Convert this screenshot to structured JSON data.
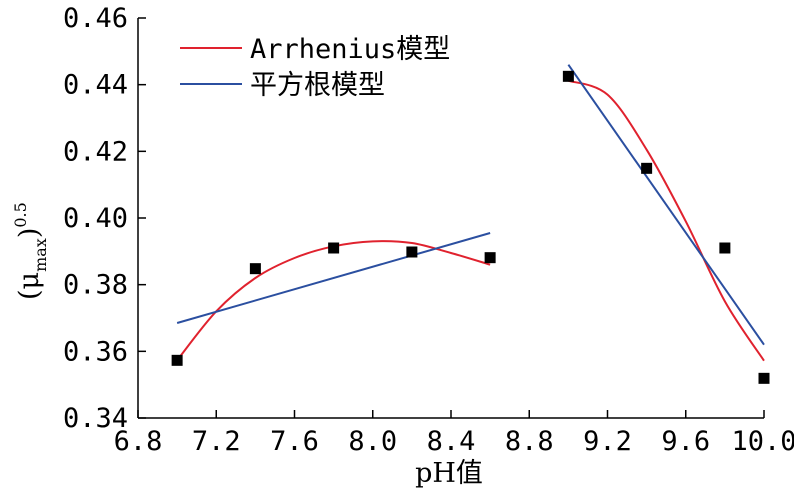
{
  "chart_data": {
    "type": "scatter",
    "xlabel": "pH值",
    "ylabel": {
      "base": "(μ",
      "sub": "max",
      "close": ")",
      "sup": "0.5"
    },
    "xlim": [
      6.8,
      10.0
    ],
    "ylim": [
      0.34,
      0.46
    ],
    "xticks": [
      6.8,
      7.2,
      7.6,
      8.0,
      8.4,
      8.8,
      9.2,
      9.6,
      10.0
    ],
    "xtick_labels": [
      "6.8",
      "7.2",
      "7.6",
      "8.0",
      "8.4",
      "8.8",
      "9.2",
      "9.6",
      "10.0"
    ],
    "yticks": [
      0.34,
      0.36,
      0.38,
      0.4,
      0.42,
      0.44,
      0.46
    ],
    "ytick_labels": [
      "0.34",
      "0.36",
      "0.38",
      "0.40",
      "0.42",
      "0.44",
      "0.46"
    ],
    "grid": false,
    "legend_position": "top-left",
    "points": [
      {
        "x": 7.0,
        "y": 0.3573
      },
      {
        "x": 7.4,
        "y": 0.3848
      },
      {
        "x": 7.8,
        "y": 0.391
      },
      {
        "x": 8.2,
        "y": 0.3898
      },
      {
        "x": 8.6,
        "y": 0.3881
      },
      {
        "x": 9.0,
        "y": 0.4425
      },
      {
        "x": 9.4,
        "y": 0.4149
      },
      {
        "x": 9.8,
        "y": 0.391
      },
      {
        "x": 10.0,
        "y": 0.3519
      }
    ],
    "series": [
      {
        "name": "Arrhenius模型",
        "color": "#e0222e",
        "segments": [
          [
            [
              7.0,
              0.3573
            ],
            [
              7.2,
              0.372
            ],
            [
              7.4,
              0.382
            ],
            [
              7.6,
              0.388
            ],
            [
              7.8,
              0.3915
            ],
            [
              8.0,
              0.393
            ],
            [
              8.2,
              0.3925
            ],
            [
              8.4,
              0.3895
            ],
            [
              8.6,
              0.386
            ]
          ],
          [
            [
              9.0,
              0.4412
            ],
            [
              9.2,
              0.437
            ],
            [
              9.4,
              0.4205
            ],
            [
              9.6,
              0.399
            ],
            [
              9.8,
              0.375
            ],
            [
              10.0,
              0.3572
            ]
          ]
        ]
      },
      {
        "name": "平方根模型",
        "color": "#2b4fa0",
        "segments": [
          [
            [
              7.0,
              0.3685
            ],
            [
              8.6,
              0.3955
            ]
          ],
          [
            [
              9.0,
              0.446
            ],
            [
              10.0,
              0.362
            ]
          ]
        ]
      }
    ]
  }
}
